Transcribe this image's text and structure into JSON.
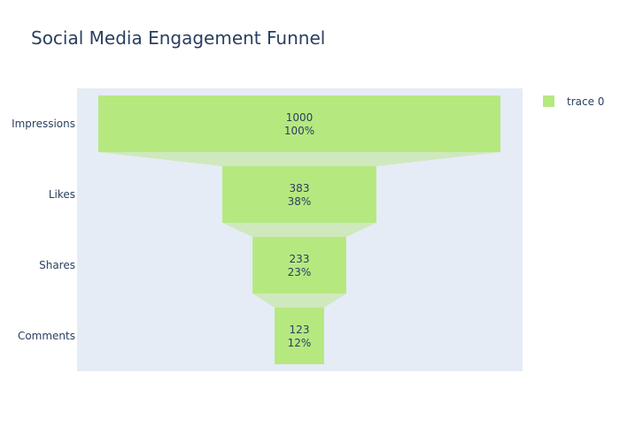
{
  "chart_data": {
    "type": "funnel",
    "title": "Social Media Engagement Funnel",
    "categories": [
      "Impressions",
      "Likes",
      "Shares",
      "Comments"
    ],
    "series": [
      {
        "name": "trace 0",
        "values": [
          1000,
          383,
          233,
          123
        ],
        "percent_labels": [
          "100%",
          "38%",
          "23%",
          "12%"
        ]
      }
    ],
    "colors": {
      "bar": "#b6e880",
      "connector": "#d0e8bd",
      "plot_background": "#e5ecf6",
      "text": "#2a3f5f"
    },
    "legend_position": "top-right",
    "grid": false
  }
}
